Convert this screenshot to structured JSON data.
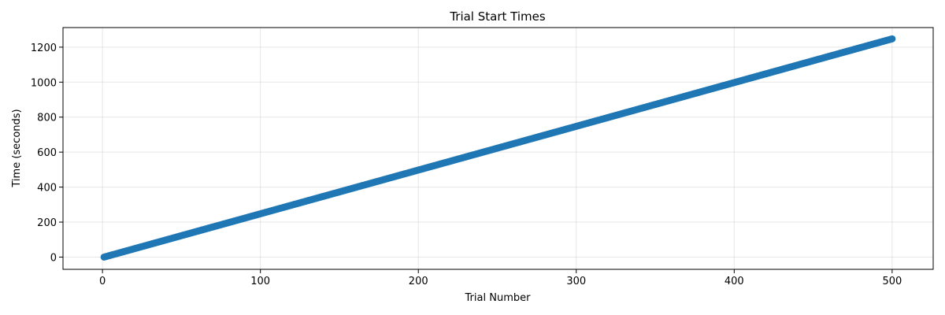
{
  "chart_data": {
    "type": "scatter",
    "title": "Trial Start Times",
    "xlabel": "Trial Number",
    "ylabel": "Time (seconds)",
    "xlim": [
      -25,
      526
    ],
    "ylim": [
      -70,
      1312
    ],
    "xticks": [
      0,
      100,
      200,
      300,
      400,
      500
    ],
    "yticks": [
      0,
      200,
      400,
      600,
      800,
      1000,
      1200
    ],
    "grid": true,
    "point_color": "#1f77b4",
    "series": [
      {
        "trial_first": 1,
        "trial_last": 500,
        "time_first": 0,
        "time_last": 1247.5,
        "interval": 2.5
      }
    ]
  }
}
